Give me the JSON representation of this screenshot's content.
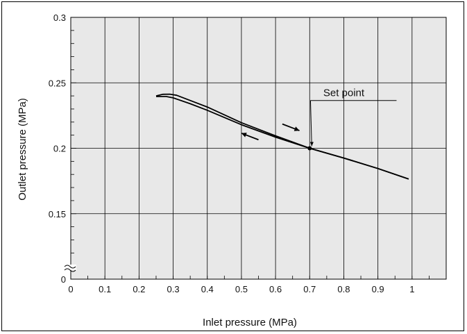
{
  "chart_data": {
    "type": "line",
    "xlabel": "Inlet pressure (MPa)",
    "ylabel": "Outlet pressure (MPa)",
    "xlim": [
      0,
      1.1
    ],
    "ylim": [
      0.1,
      0.3
    ],
    "axis_break": "y",
    "grid": true,
    "background": "#e8e8e8",
    "line_color": "#000000",
    "x_ticks": [
      0,
      0.1,
      0.2,
      0.3,
      0.4,
      0.5,
      0.6,
      0.7,
      0.8,
      0.9,
      1
    ],
    "x_tick_labels": [
      "0",
      "0.1",
      "0.2",
      "0.3",
      "0.4",
      "0.5",
      "0.6",
      "0.7",
      "0.8",
      "0.9",
      "1"
    ],
    "y_ticks": [
      0.1,
      0.15,
      0.2,
      0.25,
      0.3
    ],
    "y_tick_labels": [
      "0",
      "0.15",
      "0.2",
      "0.25",
      "0.3"
    ],
    "series": [
      {
        "direction": "increasing",
        "x": [
          0.25,
          0.27,
          0.29,
          0.31,
          0.35,
          0.4,
          0.5,
          0.6,
          0.7,
          0.8,
          0.9,
          0.99
        ],
        "y": [
          0.24,
          0.2412,
          0.2413,
          0.2405,
          0.2365,
          0.2315,
          0.2195,
          0.2095,
          0.2,
          0.1925,
          0.1845,
          0.1765
        ]
      },
      {
        "direction": "decreasing",
        "x": [
          0.99,
          0.9,
          0.8,
          0.7,
          0.6,
          0.5,
          0.4,
          0.35,
          0.3,
          0.28,
          0.25
        ],
        "y": [
          0.1765,
          0.1845,
          0.1925,
          0.2,
          0.2085,
          0.218,
          0.229,
          0.234,
          0.2385,
          0.2395,
          0.2395
        ]
      }
    ],
    "arrows": [
      {
        "from": [
          0.62,
          0.2185
        ],
        "to": [
          0.67,
          0.2135
        ]
      },
      {
        "from": [
          0.55,
          0.2065
        ],
        "to": [
          0.5,
          0.2115
        ]
      }
    ],
    "annotations": [
      {
        "text": "Set point",
        "point": [
          0.7,
          0.2
        ],
        "text_at": [
          0.8,
          0.2365
        ]
      }
    ]
  }
}
